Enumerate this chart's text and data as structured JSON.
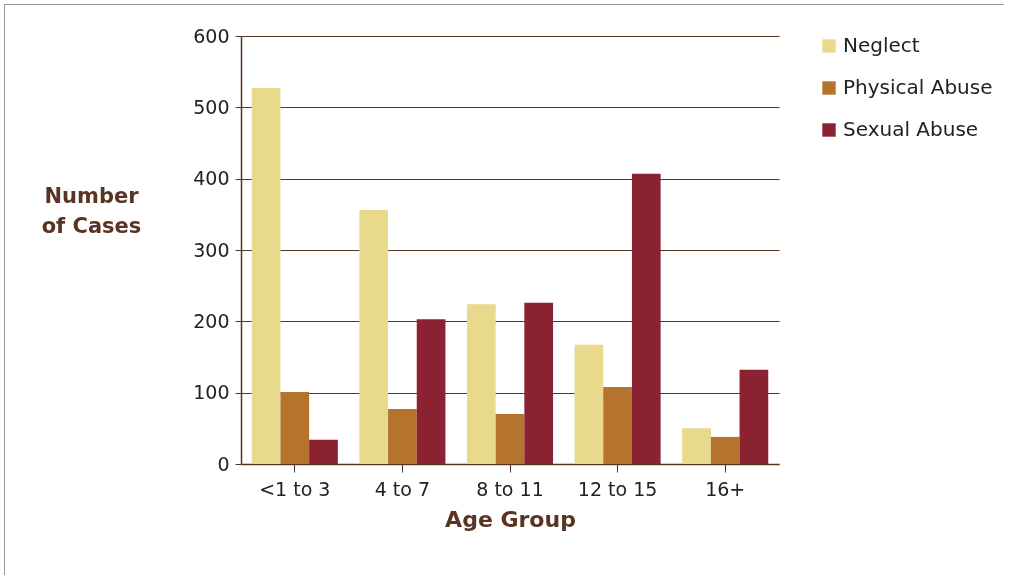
{
  "chart_data": {
    "type": "bar",
    "xlabel": "Age Group",
    "ylabel": "Number of Cases",
    "categories": [
      "<1 to 3",
      "4 to 7",
      "8 to 11",
      "12 to 15",
      "16+"
    ],
    "series": [
      {
        "name": "Neglect",
        "color": "#e8d98c",
        "values": [
          527,
          356,
          224,
          167,
          50
        ]
      },
      {
        "name": "Physical Abuse",
        "color": "#b5732e",
        "values": [
          101,
          77,
          70,
          108,
          38
        ]
      },
      {
        "name": "Sexual Abuse",
        "color": "#8b2232",
        "values": [
          34,
          203,
          226,
          407,
          132
        ]
      }
    ],
    "ylim": [
      0,
      600
    ],
    "yticks": [
      0,
      100,
      200,
      300,
      400,
      500,
      600
    ],
    "grid": "y",
    "legend": "right"
  }
}
